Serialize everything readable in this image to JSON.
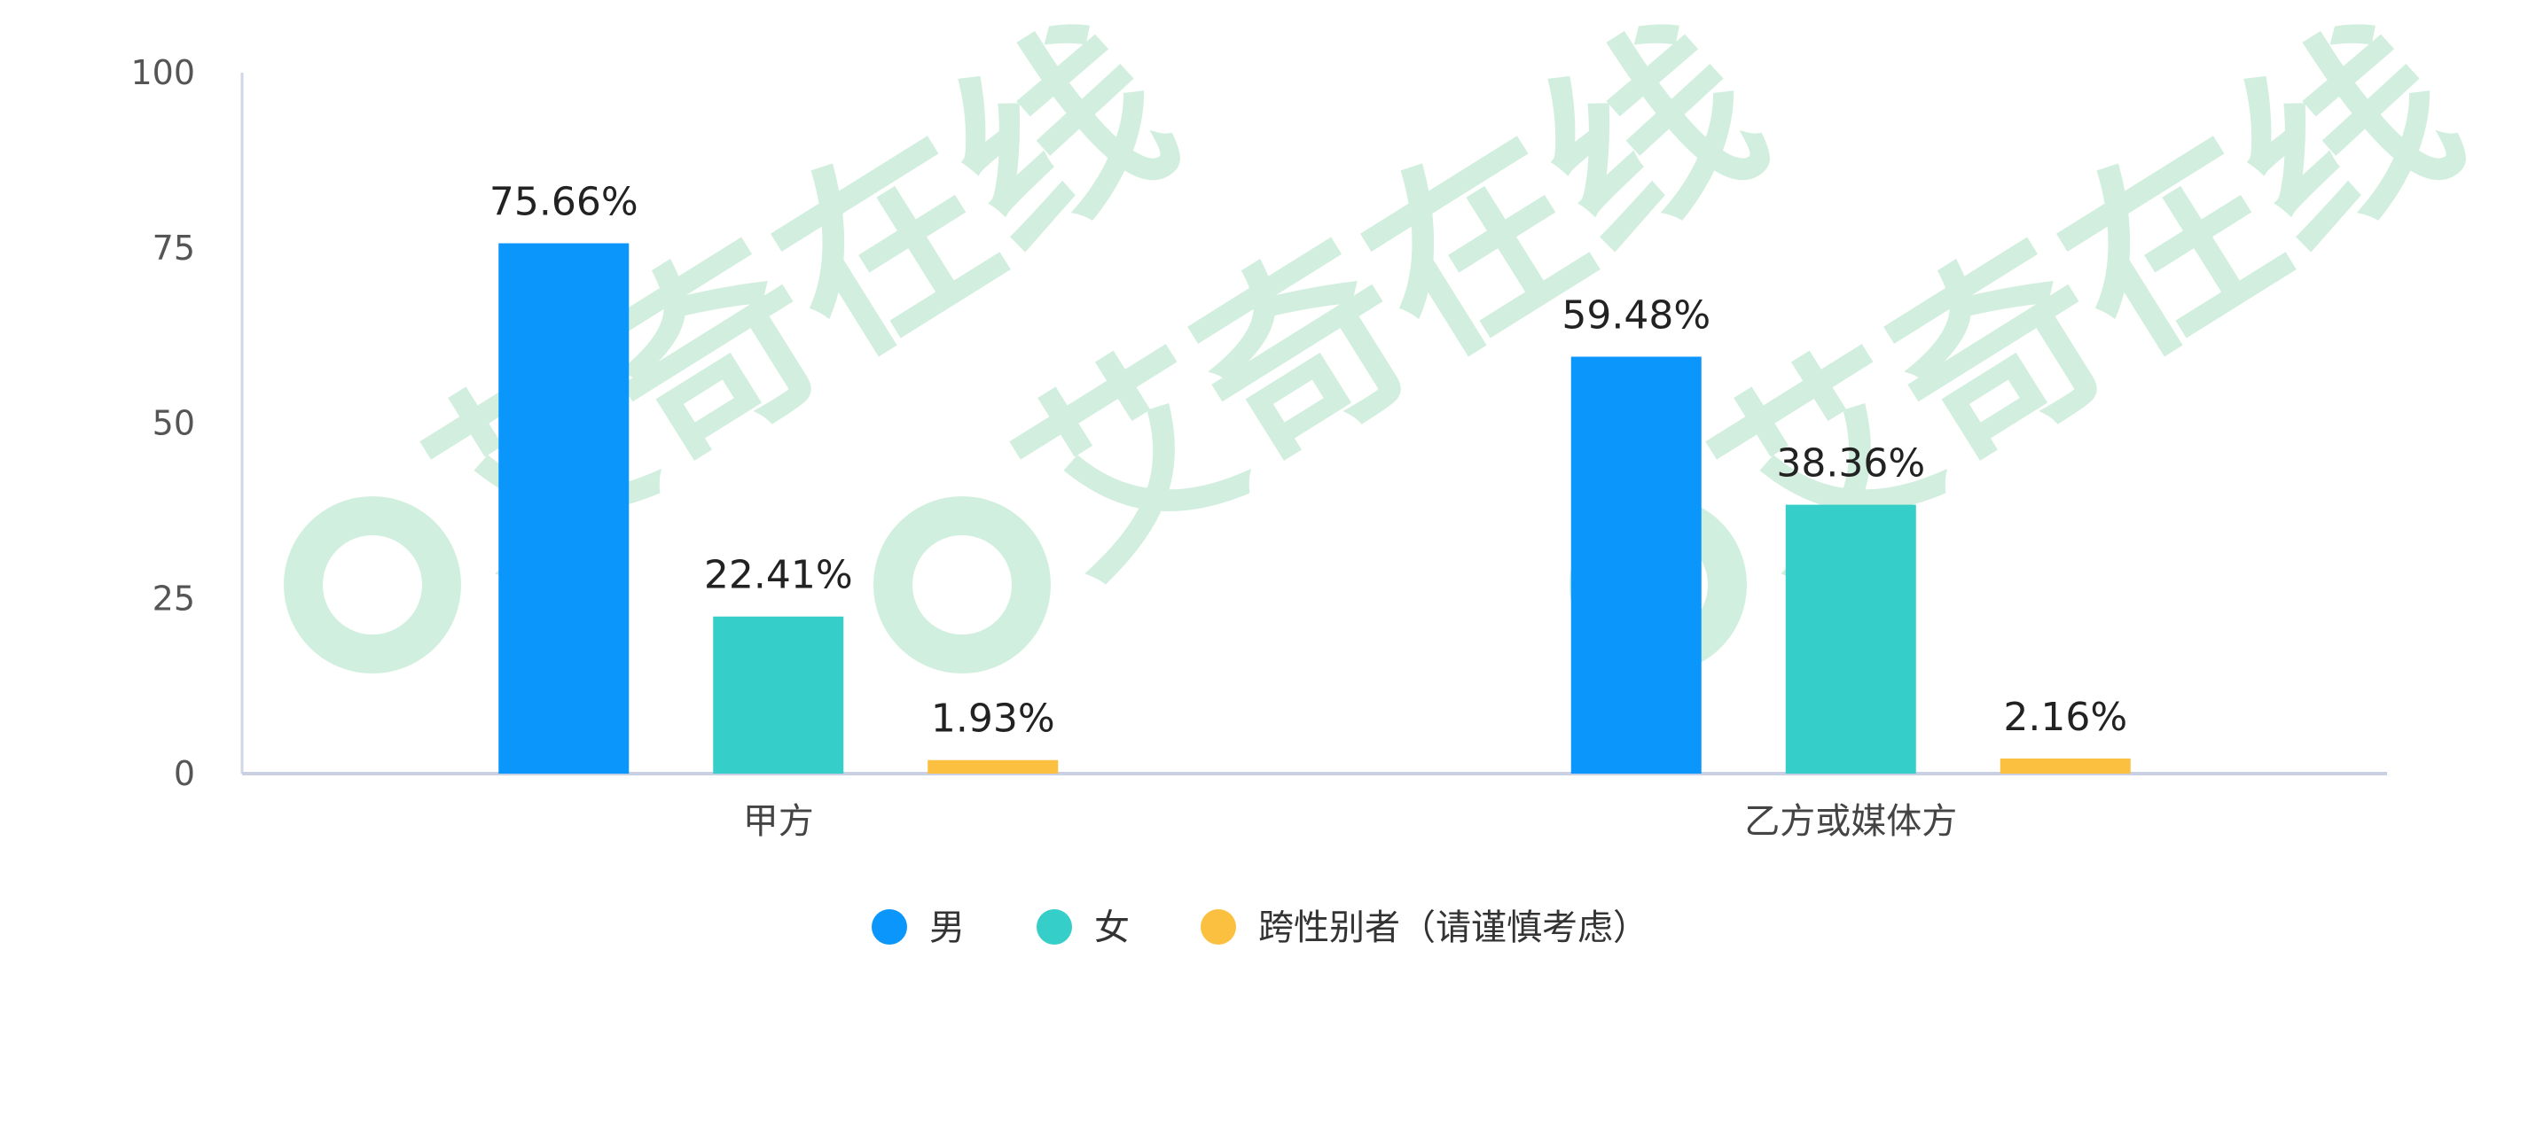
{
  "chart_data": {
    "type": "bar",
    "categories": [
      "甲方",
      "乙方或媒体方"
    ],
    "series": [
      {
        "name": "男",
        "values": [
          75.66,
          59.48
        ],
        "color": "#0a96fb"
      },
      {
        "name": "女",
        "values": [
          22.41,
          38.36
        ],
        "color": "#35cec9"
      },
      {
        "name": "跨性别者（请谨慎考虑）",
        "values": [
          1.93,
          2.16
        ],
        "color": "#fbc03f"
      }
    ],
    "value_labels": [
      [
        "75.66%",
        "59.48%"
      ],
      [
        "22.41%",
        "38.36%"
      ],
      [
        "1.93%",
        "2.16%"
      ]
    ],
    "ylim": [
      0,
      100
    ],
    "yticks": [
      0,
      25,
      50,
      75,
      100
    ],
    "grid": false,
    "legend_position": "bottom-center",
    "title": "",
    "xlabel": "",
    "ylabel": ""
  },
  "watermark": {
    "text": "艾奇在线",
    "color": "#c9ecd9"
  }
}
